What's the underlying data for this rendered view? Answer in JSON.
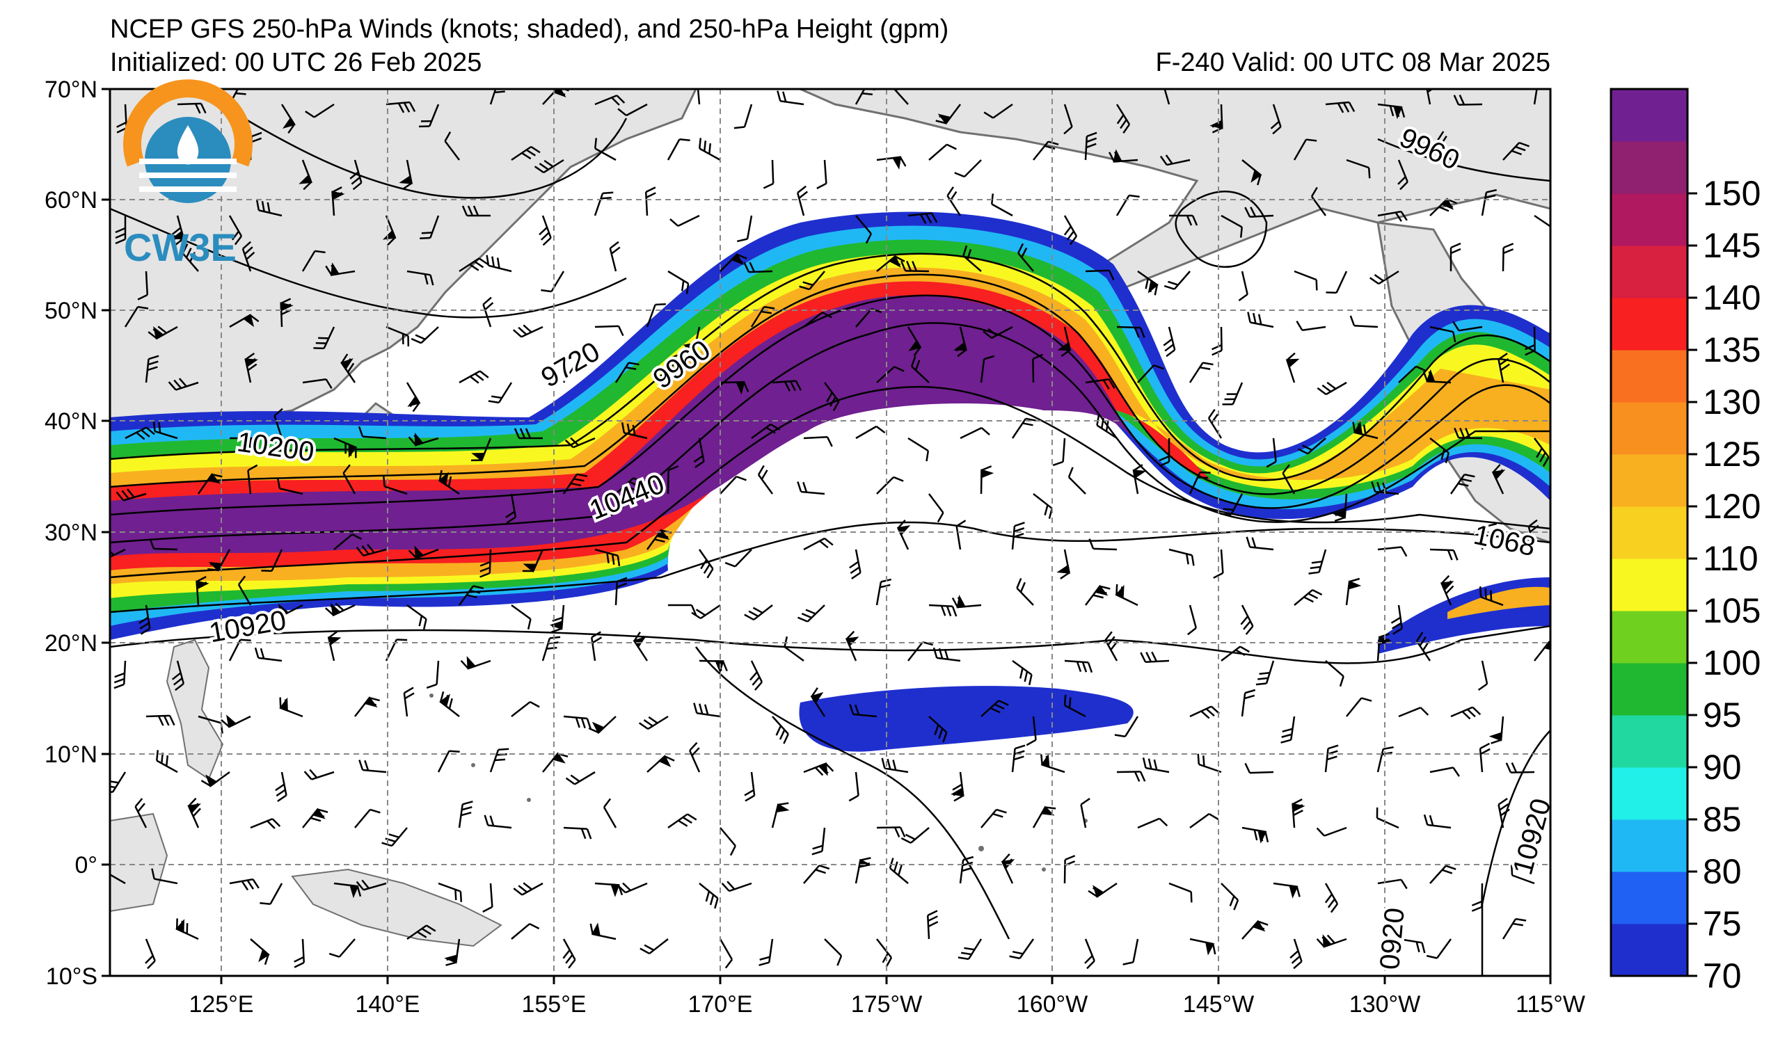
{
  "title": {
    "line1": "NCEP GFS 250-hPa Winds (knots; shaded), and 250-hPa Height (gpm)",
    "init": "Initialized: 00 UTC 26 Feb 2025",
    "valid": "F-240  Valid: 00 UTC 08 Mar 2025"
  },
  "logo": {
    "text": "CW3E",
    "colors": {
      "orange": "#f7941d",
      "teal": "#2b8cbe"
    }
  },
  "lat_labels": [
    "70°N",
    "60°N",
    "50°N",
    "40°N",
    "30°N",
    "20°N",
    "10°N",
    "0°",
    "10°S"
  ],
  "lon_labels": [
    "125°E",
    "140°E",
    "155°E",
    "170°E",
    "175°W",
    "160°W",
    "145°W",
    "130°W",
    "115°W"
  ],
  "colorbar": {
    "labels": [
      "70",
      "75",
      "80",
      "85",
      "90",
      "95",
      "100",
      "105",
      "110",
      "120",
      "125",
      "130",
      "135",
      "140",
      "145",
      "150"
    ],
    "colors": [
      "#1f2fce",
      "#2060f2",
      "#20b8f4",
      "#20f0e8",
      "#20d8a0",
      "#20b830",
      "#70d020",
      "#f8f820",
      "#f8d020",
      "#f8b020",
      "#f89020",
      "#f87020",
      "#f82020",
      "#d82040",
      "#b01860",
      "#902070",
      "#702090"
    ]
  },
  "contour_labels": [
    "9720",
    "9960",
    "10200",
    "10440",
    "10920",
    "9960",
    "1068",
    "10920",
    "0920"
  ]
}
